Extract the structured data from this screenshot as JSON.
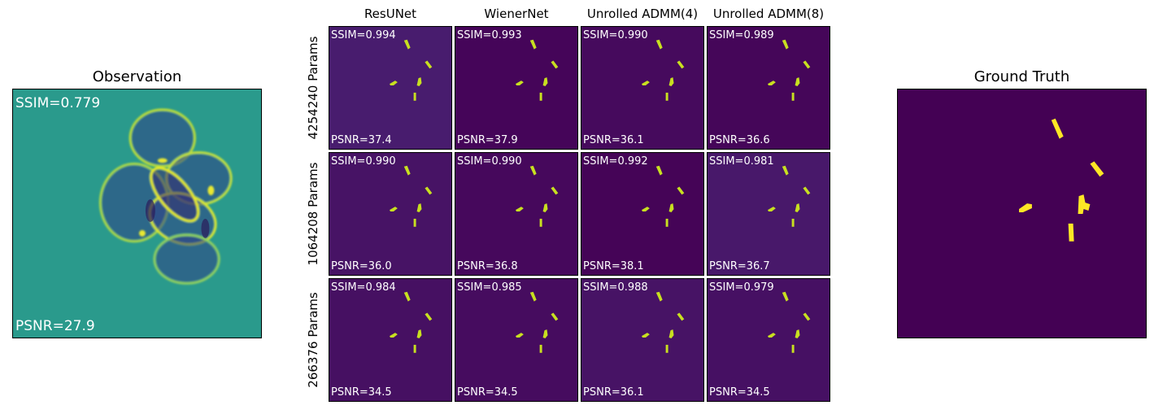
{
  "observation": {
    "title": "Observation",
    "ssim": "SSIM=0.779",
    "psnr": "PSNR=27.9",
    "bg_color": "#2a9a8c"
  },
  "ground_truth": {
    "title": "Ground Truth",
    "bg_color": "#440154",
    "blob_color": "#fde725"
  },
  "grid": {
    "columns": [
      "ResUNet",
      "WienerNet",
      "Unrolled ADMM(4)",
      "Unrolled ADMM(8)"
    ],
    "rows": [
      {
        "label": "4254240 Params",
        "cells": [
          {
            "ssim": "SSIM=0.994",
            "psnr": "PSNR=37.4",
            "bg": "#481c6e"
          },
          {
            "ssim": "SSIM=0.993",
            "psnr": "PSNR=37.9",
            "bg": "#450559"
          },
          {
            "ssim": "SSIM=0.990",
            "psnr": "PSNR=36.1",
            "bg": "#460a5d"
          },
          {
            "ssim": "SSIM=0.989",
            "psnr": "PSNR=36.6",
            "bg": "#450659"
          }
        ]
      },
      {
        "label": "1064208 Params",
        "cells": [
          {
            "ssim": "SSIM=0.990",
            "psnr": "PSNR=36.0",
            "bg": "#471365"
          },
          {
            "ssim": "SSIM=0.990",
            "psnr": "PSNR=36.8",
            "bg": "#46085c"
          },
          {
            "ssim": "SSIM=0.992",
            "psnr": "PSNR=38.1",
            "bg": "#450457"
          },
          {
            "ssim": "SSIM=0.981",
            "psnr": "PSNR=36.7",
            "bg": "#48186a"
          }
        ]
      },
      {
        "label": "266376 Params",
        "cells": [
          {
            "ssim": "SSIM=0.984",
            "psnr": "PSNR=34.5",
            "bg": "#461062"
          },
          {
            "ssim": "SSIM=0.985",
            "psnr": "PSNR=34.5",
            "bg": "#460c5f"
          },
          {
            "ssim": "SSIM=0.988",
            "psnr": "PSNR=36.1",
            "bg": "#471365"
          },
          {
            "ssim": "SSIM=0.979",
            "psnr": "PSNR=34.5",
            "bg": "#461063"
          }
        ]
      }
    ],
    "blob_color": "#c8e020"
  }
}
